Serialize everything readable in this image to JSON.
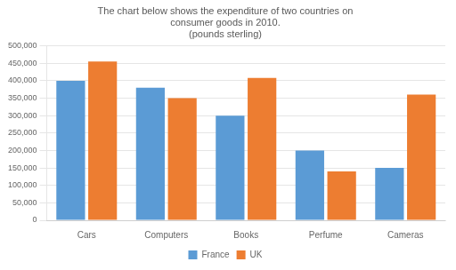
{
  "chart_data": {
    "type": "bar",
    "title": [
      "The chart below shows the expenditure of two countries on",
      "consumer goods in 2010.",
      "(pounds sterling)"
    ],
    "categories": [
      "Cars",
      "Computers",
      "Books",
      "Perfume",
      "Cameras"
    ],
    "series": [
      {
        "name": "France",
        "color": "#5b9bd5",
        "values": [
          400000,
          380000,
          300000,
          200000,
          150000
        ]
      },
      {
        "name": "UK",
        "color": "#ed7d31",
        "values": [
          455000,
          350000,
          408000,
          140000,
          360000
        ]
      }
    ],
    "ylim": [
      0,
      500000
    ],
    "yticks": [
      0,
      {
        "value": 50000,
        "label": "50,000"
      },
      {
        "value": 100000,
        "label": "100,000"
      },
      {
        "value": 150000,
        "label": "150,000"
      },
      {
        "value": 200000,
        "label": "200,000"
      },
      {
        "value": 250000,
        "label": "250,000"
      },
      {
        "value": 300000,
        "label": "300,000"
      },
      {
        "value": 350000,
        "label": "350,000"
      },
      {
        "value": 400000,
        "label": "400,000"
      },
      {
        "value": 450000,
        "label": "450,000"
      },
      {
        "value": 500000,
        "label": "500,000"
      }
    ],
    "grid": true,
    "legend": "bottom"
  }
}
